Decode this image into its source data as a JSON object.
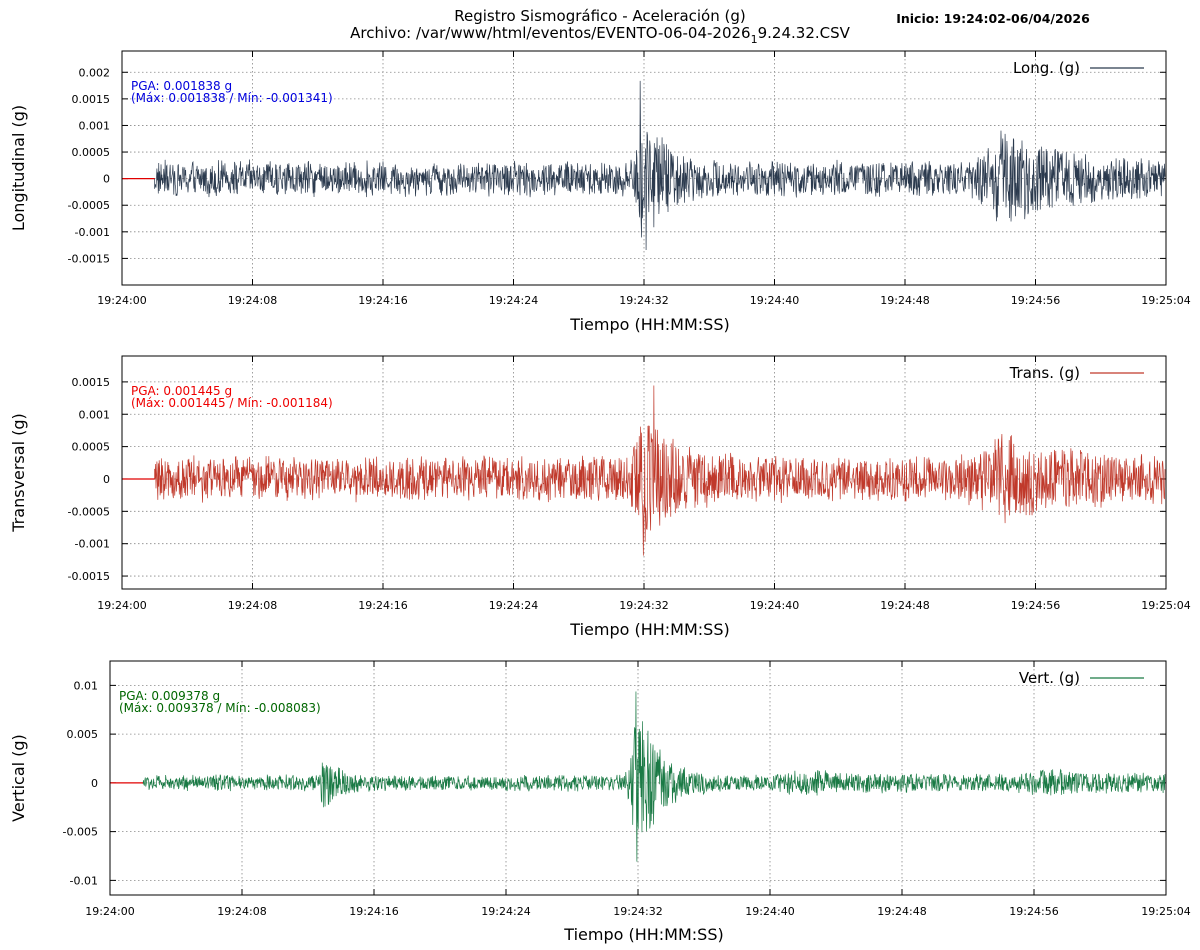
{
  "header": {
    "title": "Registro Sismográfico - Aceleración (g)",
    "file_prefix": "Archivo: /var/www/html/eventos/EVENTO-06-04-2026",
    "file_subscript": "1",
    "file_suffix": "9.24.32.CSV",
    "start": "Inicio: 19:24:02-06/04/2026"
  },
  "chart_data": [
    {
      "type": "line",
      "title": "",
      "ylabel": "Longitudinal (g)",
      "xlabel": "Tiempo (HH:MM:SS)",
      "legend": "Long. (g)",
      "legend_position": "top-right",
      "color": "#2b3a4e",
      "grid": true,
      "ylim": [
        -0.002,
        0.0024
      ],
      "yticks": [
        0.002,
        0.0015,
        0.001,
        0.0005,
        0,
        -0.0005,
        -0.001,
        -0.0015
      ],
      "ytick_labels": [
        "0.002",
        "0.0015",
        "0.001",
        "0.0005",
        "0",
        "-0.0005",
        "-0.001",
        "-0.0015"
      ],
      "x_start": "19:24:00",
      "x_end": "19:25:04",
      "xtick_labels": [
        "19:24:00",
        "19:24:08",
        "19:24:16",
        "19:24:24",
        "19:24:32",
        "19:24:40",
        "19:24:48",
        "19:24:56",
        "19:25:04"
      ],
      "pga_label": "PGA: 0.001838 g",
      "range_label": "(Máx: 0.001838 / Mín: -0.001341)",
      "annotation_color": "#0000dd",
      "max": 0.001838,
      "min": -0.001341,
      "signal_start": "19:24:02",
      "noise_amplitude": 0.00036,
      "events": [
        {
          "time": "19:24:32",
          "peak": 0.0011,
          "width_s": 0.8
        },
        {
          "time": "19:24:54",
          "peak": 0.0006,
          "width_s": 2.5
        }
      ]
    },
    {
      "type": "line",
      "title": "",
      "ylabel": "Transversal (g)",
      "xlabel": "Tiempo (HH:MM:SS)",
      "legend": "Trans. (g)",
      "legend_position": "top-right",
      "color": "#c0392b",
      "grid": true,
      "ylim": [
        -0.0017,
        0.0019
      ],
      "yticks": [
        0.0015,
        0.001,
        0.0005,
        0,
        -0.0005,
        -0.001,
        -0.0015
      ],
      "ytick_labels": [
        "0.0015",
        "0.001",
        "0.0005",
        "0",
        "-0.0005",
        "-0.001",
        "-0.0015"
      ],
      "x_start": "19:24:00",
      "x_end": "19:25:04",
      "xtick_labels": [
        "19:24:00",
        "19:24:08",
        "19:24:16",
        "19:24:24",
        "19:24:32",
        "19:24:40",
        "19:24:48",
        "19:24:56",
        "19:25:04"
      ],
      "pga_label": "PGA: 0.001445 g",
      "range_label": "(Máx: 0.001445 / Mín: -0.001184)",
      "annotation_color": "#ee0000",
      "max": 0.001445,
      "min": -0.001184,
      "signal_start": "19:24:02",
      "noise_amplitude": 0.00038,
      "events": [
        {
          "time": "19:24:32",
          "peak": 0.0008,
          "width_s": 1.2
        },
        {
          "time": "19:24:54",
          "peak": 0.0004,
          "width_s": 2.5
        }
      ]
    },
    {
      "type": "line",
      "title": "",
      "ylabel": "Vertical (g)",
      "xlabel": "Tiempo (HH:MM:SS)",
      "legend": "Vert. (g)",
      "legend_position": "top-right",
      "color": "#1a7a45",
      "grid": true,
      "ylim": [
        -0.0115,
        0.0125
      ],
      "yticks": [
        0.01,
        0.005,
        0,
        -0.005,
        -0.01
      ],
      "ytick_labels": [
        "0.01",
        "0.005",
        "0",
        "-0.005",
        "-0.01"
      ],
      "x_start": "19:24:00",
      "x_end": "19:25:04",
      "xtick_labels": [
        "19:24:00",
        "19:24:08",
        "19:24:16",
        "19:24:24",
        "19:24:32",
        "19:24:40",
        "19:24:48",
        "19:24:56",
        "19:25:04"
      ],
      "pga_label": "PGA: 0.009378 g",
      "range_label": "(Máx: 0.009378 / Mín: -0.008083)",
      "annotation_color": "#006600",
      "max": 0.009378,
      "min": -0.008083,
      "signal_start": "19:24:02",
      "noise_amplitude": 0.0009,
      "events": [
        {
          "time": "19:24:13",
          "peak": 0.0022,
          "width_s": 0.5
        },
        {
          "time": "19:24:32",
          "peak": 0.0075,
          "width_s": 0.8
        },
        {
          "time": "19:24:42",
          "peak": 0.0006,
          "width_s": 3.0
        },
        {
          "time": "19:24:57",
          "peak": 0.0006,
          "width_s": 3.0
        }
      ]
    }
  ]
}
